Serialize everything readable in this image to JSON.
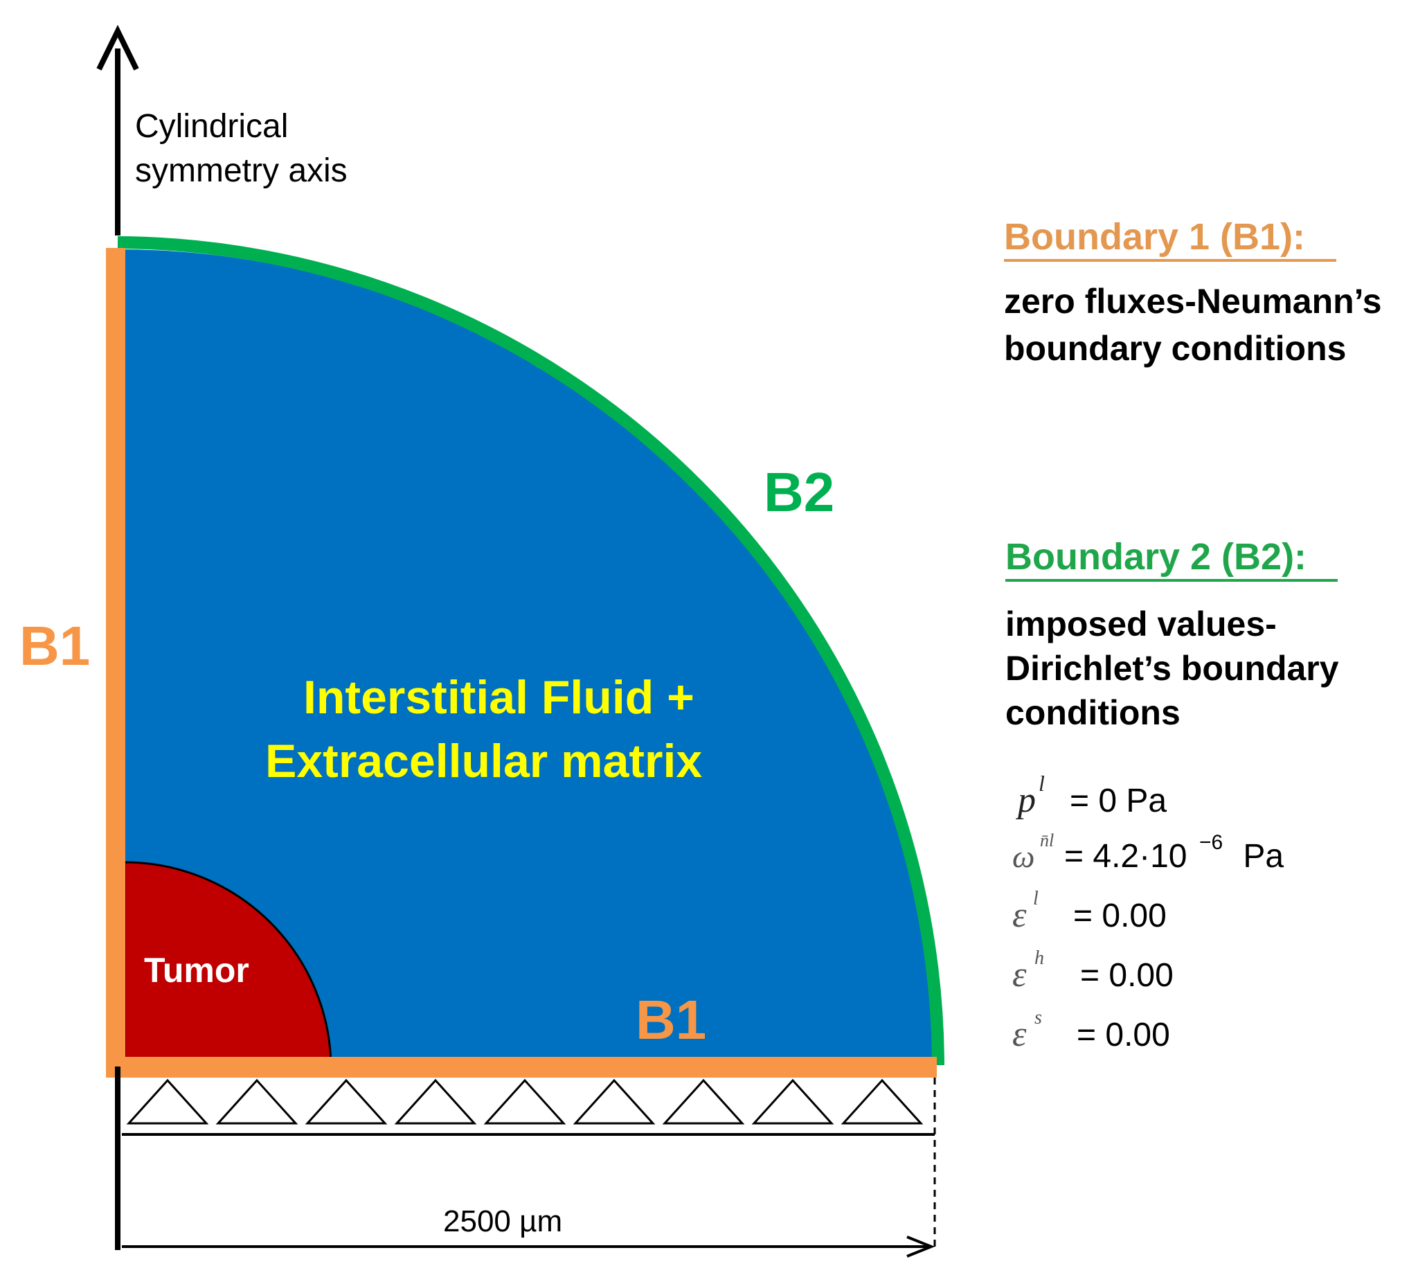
{
  "axis_label": {
    "line1": "Cylindrical",
    "line2": "symmetry axis"
  },
  "labels": {
    "b1_left": "B1",
    "b1_bottom": "B1",
    "b2": "B2",
    "domain_line1": "Interstitial Fluid +",
    "domain_line2": "Extracellular matrix",
    "tumor": "Tumor",
    "dimension": "2500 µm"
  },
  "boundary1": {
    "title": "Boundary 1 (B1):",
    "desc_line1": "zero fluxes-Neumann’s",
    "desc_line2": "boundary conditions"
  },
  "boundary2": {
    "title": "Boundary 2 (B2):",
    "desc_line1": "imposed values-",
    "desc_line2": "Dirichlet’s boundary",
    "desc_line3": "conditions"
  },
  "equations": [
    {
      "symbol": "p",
      "sup": "l",
      "value": "= 0 Pa"
    },
    {
      "symbol": "ω",
      "sup": "n̄l",
      "value": "= 4.2·10",
      "exp": "−6",
      "unit": " Pa"
    },
    {
      "symbol": "ε",
      "sup": "l",
      "value": "= 0.00"
    },
    {
      "symbol": "ε",
      "sup": "h",
      "value": "= 0.00"
    },
    {
      "symbol": "ε",
      "sup": "s",
      "value": "= 0.00"
    }
  ],
  "colors": {
    "domain_blue": "#0070C0",
    "boundary1_orange": "#F79646",
    "boundary2_green": "#00B050",
    "tumor_red": "#C00000",
    "domain_text_yellow": "#FFFF00",
    "boundary1_title": "#E3974F",
    "boundary2_title": "#1FA64A"
  }
}
